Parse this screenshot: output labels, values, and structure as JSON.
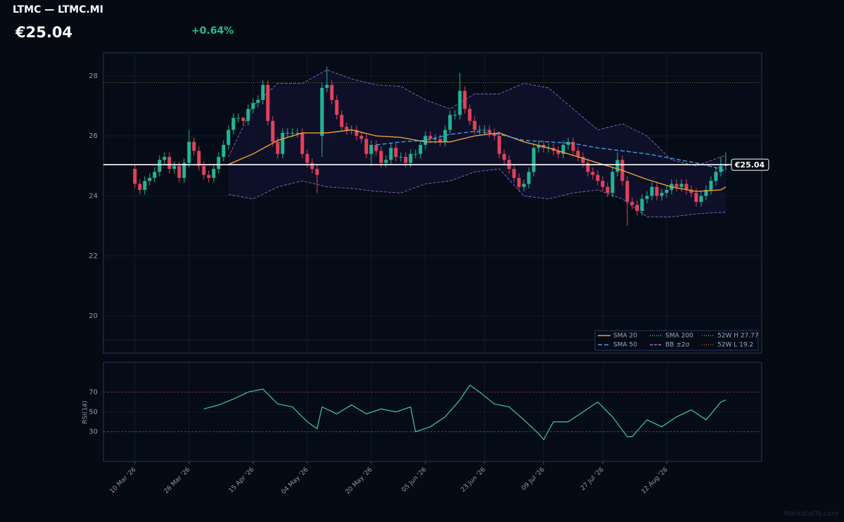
{
  "header": {
    "title": "LTMC — LTMC.MI",
    "price": "€25.04",
    "change": "+0.64%"
  },
  "watermark": "MarketsFN.com",
  "chart_data": {
    "type": "candlestick",
    "up_color": "#22b594",
    "down_color": "#e2415c",
    "xlim": [
      -6.4,
      127.3
    ],
    "xticks": [
      {
        "value": 0,
        "label": "10 Mar '26"
      },
      {
        "value": 11,
        "label": "26 Mar '26"
      },
      {
        "value": 24,
        "label": "15 Apr '26"
      },
      {
        "value": 35,
        "label": "04 May '26"
      },
      {
        "value": 48,
        "label": "20 May '26"
      },
      {
        "value": 59,
        "label": "05 Jun '26"
      },
      {
        "value": 71,
        "label": "23 Jun '26"
      },
      {
        "value": 83,
        "label": "09 Jul '26"
      },
      {
        "value": 95,
        "label": "27 Jul '26"
      },
      {
        "value": 108,
        "label": "12 Aug '26"
      }
    ],
    "ylim": [
      18.76,
      28.77
    ],
    "yticks": [
      20,
      22,
      24,
      26,
      28
    ],
    "grid": true,
    "open": [
      24.9,
      24.4,
      24.2,
      24.5,
      24.6,
      24.8,
      25.2,
      25.3,
      24.9,
      25.0,
      24.6,
      25.1,
      25.8,
      25.5,
      25.0,
      24.7,
      24.6,
      24.9,
      25.3,
      25.7,
      26.2,
      26.6,
      26.6,
      26.5,
      26.9,
      27.1,
      27.2,
      27.7,
      26.5,
      25.8,
      25.4,
      26.1,
      26.1,
      26.1,
      26.1,
      25.4,
      25.1,
      24.9,
      26.0,
      27.6,
      27.7,
      27.2,
      26.7,
      26.3,
      26.2,
      26.2,
      26.0,
      25.9,
      25.4,
      25.7,
      25.5,
      25.1,
      25.2,
      25.6,
      25.3,
      25.3,
      25.1,
      25.4,
      25.4,
      25.7,
      26.0,
      25.9,
      25.9,
      25.8,
      26.2,
      26.7,
      26.7,
      27.5,
      26.9,
      26.5,
      26.2,
      26.2,
      26.2,
      26.1,
      26.0,
      25.4,
      25.2,
      24.9,
      24.6,
      24.3,
      24.4,
      24.8,
      25.6,
      25.7,
      25.6,
      25.6,
      25.5,
      25.4,
      25.7,
      25.8,
      25.5,
      25.3,
      25.1,
      24.8,
      24.7,
      24.5,
      24.3,
      24.1,
      24.8,
      25.2,
      24.5,
      23.8,
      23.7,
      23.5,
      23.9,
      24.0,
      24.3,
      24.0,
      24.1,
      24.2,
      24.4,
      24.3,
      24.4,
      24.2,
      24.1,
      23.8,
      24.0,
      24.2,
      24.5,
      24.8,
      25.0
    ],
    "high": [
      25.05,
      24.55,
      24.65,
      24.75,
      24.95,
      25.35,
      25.45,
      25.45,
      25.15,
      25.15,
      25.25,
      26.2,
      25.95,
      25.65,
      25.15,
      24.85,
      25.05,
      25.45,
      25.85,
      26.35,
      26.75,
      26.75,
      26.65,
      27.05,
      27.25,
      27.35,
      27.85,
      27.85,
      26.65,
      25.95,
      26.25,
      26.25,
      26.25,
      26.25,
      26.25,
      25.55,
      25.25,
      25.05,
      27.75,
      28.3,
      27.85,
      27.35,
      26.85,
      26.45,
      26.35,
      26.35,
      26.15,
      26.05,
      25.85,
      25.85,
      25.65,
      25.35,
      25.75,
      25.75,
      25.45,
      25.45,
      25.55,
      25.55,
      25.85,
      26.15,
      26.15,
      26.05,
      26.05,
      26.35,
      26.85,
      26.85,
      28.1,
      27.65,
      27.05,
      26.65,
      26.35,
      26.35,
      26.35,
      26.25,
      26.15,
      25.55,
      25.35,
      25.05,
      24.75,
      24.55,
      24.95,
      25.75,
      25.85,
      25.85,
      25.75,
      25.75,
      25.65,
      25.85,
      25.95,
      25.95,
      25.65,
      25.45,
      25.25,
      24.95,
      24.85,
      24.65,
      24.45,
      24.95,
      25.45,
      25.35,
      24.65,
      23.95,
      23.85,
      24.05,
      24.15,
      24.45,
      24.45,
      24.25,
      24.35,
      24.55,
      24.55,
      24.55,
      24.55,
      24.35,
      24.25,
      24.15,
      24.35,
      24.65,
      24.95,
      25.3,
      25.45
    ],
    "low": [
      24.25,
      24.05,
      24.05,
      24.35,
      24.45,
      24.65,
      25.05,
      24.75,
      24.75,
      24.45,
      24.45,
      24.95,
      25.35,
      24.85,
      24.55,
      24.45,
      24.45,
      24.75,
      25.15,
      25.55,
      26.05,
      26.45,
      26.35,
      26.35,
      26.75,
      26.95,
      27.05,
      26.35,
      25.65,
      25.25,
      25.25,
      25.95,
      25.95,
      25.95,
      25.25,
      24.95,
      24.75,
      24.1,
      25.3,
      27.45,
      27.05,
      26.55,
      26.15,
      26.05,
      26.05,
      25.85,
      25.75,
      25.25,
      25.0,
      25.35,
      24.95,
      24.95,
      25.05,
      25.15,
      25.15,
      24.95,
      24.95,
      25.25,
      25.25,
      25.55,
      25.75,
      25.75,
      25.65,
      25.65,
      26.05,
      26.55,
      26.55,
      26.75,
      26.35,
      26.05,
      26.05,
      26.05,
      25.95,
      25.85,
      25.25,
      25.05,
      24.75,
      24.45,
      24.15,
      24.15,
      24.25,
      24.65,
      25.45,
      25.45,
      25.45,
      25.35,
      25.25,
      25.25,
      25.55,
      25.35,
      25.15,
      24.95,
      24.65,
      24.55,
      24.35,
      24.15,
      23.95,
      23.95,
      24.65,
      24.35,
      23.0,
      23.55,
      23.35,
      23.35,
      23.75,
      23.85,
      23.85,
      23.85,
      23.95,
      24.05,
      24.15,
      24.15,
      24.05,
      23.95,
      23.65,
      23.65,
      23.85,
      24.05,
      24.35,
      24.65,
      24.85
    ],
    "close": [
      24.4,
      24.2,
      24.5,
      24.6,
      24.8,
      25.2,
      25.3,
      24.9,
      25.0,
      24.6,
      25.1,
      25.8,
      25.5,
      25.0,
      24.7,
      24.6,
      24.9,
      25.3,
      25.7,
      26.2,
      26.6,
      26.6,
      26.5,
      26.9,
      27.1,
      27.2,
      27.7,
      26.5,
      25.8,
      25.4,
      26.1,
      26.1,
      26.1,
      26.1,
      25.4,
      25.1,
      24.9,
      24.7,
      27.6,
      27.7,
      27.2,
      26.7,
      26.3,
      26.2,
      26.2,
      26.0,
      25.9,
      25.4,
      25.7,
      25.5,
      25.1,
      25.2,
      25.6,
      25.3,
      25.3,
      25.1,
      25.4,
      25.4,
      25.7,
      26.0,
      25.9,
      25.9,
      25.8,
      26.2,
      26.7,
      26.7,
      27.5,
      26.9,
      26.5,
      26.2,
      26.2,
      26.2,
      26.1,
      26.0,
      25.4,
      25.2,
      24.9,
      24.6,
      24.3,
      24.4,
      24.8,
      25.6,
      25.7,
      25.6,
      25.6,
      25.5,
      25.4,
      25.7,
      25.8,
      25.5,
      25.3,
      25.1,
      24.8,
      24.7,
      24.5,
      24.3,
      24.1,
      24.8,
      25.2,
      24.5,
      23.8,
      23.7,
      23.5,
      23.9,
      24.0,
      24.3,
      24.0,
      24.1,
      24.2,
      24.4,
      24.3,
      24.4,
      24.2,
      24.1,
      23.8,
      24.0,
      24.2,
      24.5,
      24.8,
      25.0,
      25.04
    ],
    "last_price": {
      "value": 25.04,
      "label": "€25.04"
    },
    "bands": {
      "name": "BB ±2σ",
      "color": "#9a6fd0",
      "x": [
        19,
        24,
        29,
        34,
        39,
        44,
        49,
        54,
        59,
        64,
        69,
        74,
        79,
        84,
        89,
        94,
        99,
        104,
        109,
        114,
        119,
        120
      ],
      "upper": [
        25.3,
        27.0,
        27.75,
        27.75,
        28.2,
        27.9,
        27.7,
        27.65,
        27.2,
        26.9,
        27.4,
        27.4,
        27.75,
        27.6,
        26.9,
        26.2,
        26.4,
        26.0,
        25.2,
        25.0,
        25.3,
        25.35
      ],
      "lower": [
        24.05,
        23.9,
        24.3,
        24.5,
        24.3,
        24.25,
        24.15,
        24.1,
        24.4,
        24.5,
        24.8,
        24.9,
        24.0,
        23.9,
        24.1,
        24.2,
        23.9,
        23.3,
        23.3,
        23.4,
        23.45,
        23.45
      ]
    },
    "series": [
      {
        "name": "SMA 20",
        "color": "#f0a030",
        "dash": "",
        "x": [
          19,
          24,
          29,
          34,
          39,
          44,
          49,
          54,
          59,
          64,
          69,
          74,
          79,
          84,
          89,
          94,
          99,
          104,
          109,
          114,
          119,
          120
        ],
        "values": [
          25.05,
          25.4,
          25.85,
          26.1,
          26.1,
          26.2,
          26.0,
          25.95,
          25.8,
          25.8,
          26.0,
          26.1,
          25.8,
          25.6,
          25.35,
          25.1,
          24.85,
          24.55,
          24.3,
          24.15,
          24.2,
          24.3
        ]
      },
      {
        "name": "SMA 50",
        "color": "#3f9be8",
        "dash": "6 3",
        "x": [
          49,
          54,
          59,
          64,
          69,
          74,
          79,
          84,
          89,
          94,
          99,
          104,
          109,
          114,
          119,
          120
        ],
        "values": [
          25.7,
          25.8,
          25.85,
          26.05,
          26.15,
          26.05,
          25.85,
          25.8,
          25.75,
          25.6,
          25.5,
          25.4,
          25.25,
          25.1,
          24.9,
          24.8
        ]
      },
      {
        "name": "SMA 200",
        "color": "#3fbf8a",
        "dash": "1 2",
        "x": [],
        "values": []
      }
    ],
    "levels": [
      {
        "name": "52W H 27.77",
        "value": 27.77,
        "color": "#8a8a30"
      },
      {
        "name": "52W L 19.2",
        "value": 19.2,
        "color": "#9a4a3a"
      }
    ],
    "legend": "lower right",
    "rsi": {
      "ylabel": "RSI(14)",
      "color": "#3cc9a0",
      "ylim": [
        0,
        100
      ],
      "yticks": [
        30,
        50,
        70
      ],
      "x": [
        14,
        17,
        20,
        23,
        26,
        29,
        32,
        35,
        37,
        38,
        41,
        44,
        47,
        50,
        53,
        56,
        57,
        60,
        63,
        66,
        68,
        70,
        73,
        76,
        79,
        82,
        83,
        85,
        88,
        91,
        94,
        97,
        100,
        101,
        104,
        107,
        110,
        113,
        116,
        119,
        120
      ],
      "values": [
        53,
        57,
        63,
        70,
        73,
        58,
        55,
        40,
        33,
        55,
        48,
        57,
        48,
        53,
        50,
        55,
        30,
        35,
        45,
        62,
        77,
        70,
        58,
        55,
        42,
        28,
        22,
        40,
        40,
        50,
        60,
        45,
        25,
        25,
        42,
        35,
        45,
        52,
        42,
        60,
        62
      ]
    }
  }
}
